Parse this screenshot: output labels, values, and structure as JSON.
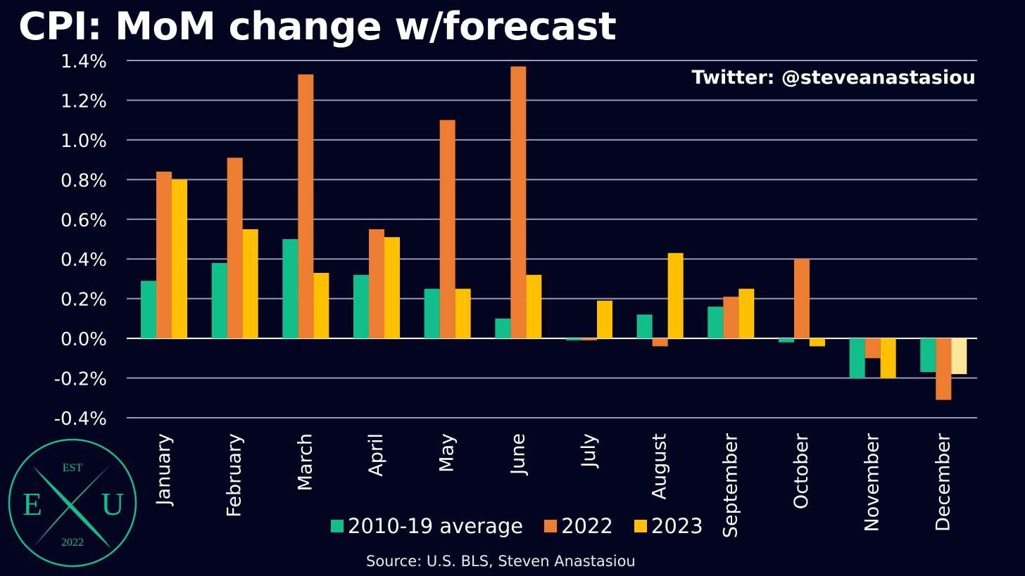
{
  "title": "CPI: MoM change w/forecast",
  "twitter_handle": "Twitter: @steveanastasiou",
  "source": "Source: U.S. BLS, Steven Anastasiou",
  "logo": {
    "top": "EST",
    "left": "E",
    "right": "U",
    "bottom": "2022",
    "center": "X"
  },
  "colors": {
    "background": "#03041f",
    "grid": "#9a9ab0",
    "zero_line": "#ffffff",
    "avg": "#10bf8a",
    "y2022": "#ed7d31",
    "y2023": "#ffc000",
    "y2023_forecast": "#ffe699",
    "logo": "#10bf8a"
  },
  "chart_data": {
    "type": "bar",
    "title": "CPI: MoM change w/forecast",
    "categories": [
      "January",
      "February",
      "March",
      "April",
      "May",
      "June",
      "July",
      "August",
      "September",
      "October",
      "November",
      "December"
    ],
    "series": [
      {
        "name": "2010-19 average",
        "color": "#10bf8a",
        "values": [
          0.29,
          0.38,
          0.5,
          0.32,
          0.25,
          0.1,
          -0.01,
          0.12,
          0.16,
          -0.02,
          -0.2,
          -0.17
        ]
      },
      {
        "name": "2022",
        "color": "#ed7d31",
        "values": [
          0.84,
          0.91,
          1.33,
          0.55,
          1.1,
          1.37,
          -0.01,
          -0.04,
          0.21,
          0.4,
          -0.1,
          -0.31
        ]
      },
      {
        "name": "2023",
        "color": "#ffc000",
        "values": [
          0.8,
          0.55,
          0.33,
          0.51,
          0.25,
          0.32,
          0.19,
          0.43,
          0.25,
          -0.04,
          -0.2,
          -0.18
        ]
      }
    ],
    "forecast_points": [
      {
        "series": "2023",
        "category": "December",
        "color": "#ffe699"
      }
    ],
    "ylim": [
      -0.4,
      1.4
    ],
    "yticks": [
      "-0.4%",
      "-0.2%",
      "0.0%",
      "0.2%",
      "0.4%",
      "0.6%",
      "0.8%",
      "1.0%",
      "1.2%",
      "1.4%"
    ],
    "ytick_values": [
      -0.4,
      -0.2,
      0,
      0.2,
      0.4,
      0.6,
      0.8,
      1.0,
      1.2,
      1.4
    ],
    "grid": true,
    "legend_position": "bottom"
  }
}
